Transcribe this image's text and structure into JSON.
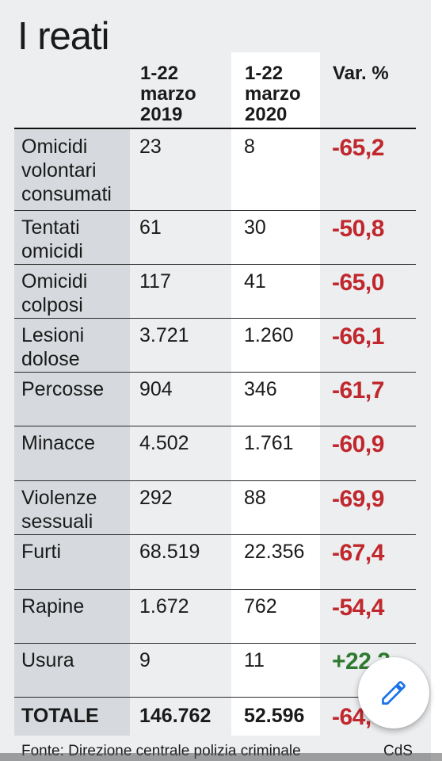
{
  "title": "I reati",
  "columns": {
    "label": "",
    "y2019": "1-22\nmarzo\n2019",
    "y2020": "1-22\nmarzo\n2020",
    "var": "Var. %"
  },
  "rows": [
    {
      "label": "Omicidi volontari consumati",
      "v2019": "23",
      "v2020": "8",
      "var": "-65,2",
      "sign": "neg"
    },
    {
      "label": "Tentati omicidi",
      "v2019": "61",
      "v2020": "30",
      "var": "-50,8",
      "sign": "neg"
    },
    {
      "label": "Omicidi colposi",
      "v2019": "117",
      "v2020": "41",
      "var": "-65,0",
      "sign": "neg"
    },
    {
      "label": "Lesioni dolose",
      "v2019": "3.721",
      "v2020": "1.260",
      "var": "-66,1",
      "sign": "neg"
    },
    {
      "label": "Percosse",
      "v2019": "904",
      "v2020": "346",
      "var": "-61,7",
      "sign": "neg"
    },
    {
      "label": "Minacce",
      "v2019": "4.502",
      "v2020": "1.761",
      "var": "-60,9",
      "sign": "neg"
    },
    {
      "label": "Violenze sessuali",
      "v2019": "292",
      "v2020": "88",
      "var": "-69,9",
      "sign": "neg"
    },
    {
      "label": "Furti",
      "v2019": "68.519",
      "v2020": "22.356",
      "var": "-67,4",
      "sign": "neg"
    },
    {
      "label": "Rapine",
      "v2019": "1.672",
      "v2020": "762",
      "var": "-54,4",
      "sign": "neg"
    },
    {
      "label": "Usura",
      "v2019": "9",
      "v2020": "11",
      "var": "+22,2",
      "sign": "pos"
    }
  ],
  "total": {
    "label": "TOTALE",
    "v2019": "146.762",
    "v2020": "52.596",
    "var": "-64,"
  },
  "footer": {
    "source": "Fonte: Direzione centrale polizia criminale",
    "credit": "CdS"
  },
  "colors": {
    "negative": "#c0282d",
    "positive": "#2f7a2f",
    "accent": "#1a73e8"
  },
  "fab_icon": "pencil-icon",
  "chart_data": {
    "type": "table",
    "title": "I reati",
    "columns": [
      "",
      "1-22 marzo 2019",
      "1-22 marzo 2020",
      "Var. %"
    ],
    "rows": [
      [
        "Omicidi volontari consumati",
        23,
        8,
        -65.2
      ],
      [
        "Tentati omicidi",
        61,
        30,
        -50.8
      ],
      [
        "Omicidi colposi",
        117,
        41,
        -65.0
      ],
      [
        "Lesioni dolose",
        3721,
        1260,
        -66.1
      ],
      [
        "Percosse",
        904,
        346,
        -61.7
      ],
      [
        "Minacce",
        4502,
        1761,
        -60.9
      ],
      [
        "Violenze sessuali",
        292,
        88,
        -69.9
      ],
      [
        "Furti",
        68519,
        22356,
        -67.4
      ],
      [
        "Rapine",
        1672,
        762,
        -54.4
      ],
      [
        "Usura",
        9,
        11,
        22.2
      ],
      [
        "TOTALE",
        146762,
        52596,
        -64
      ]
    ]
  }
}
